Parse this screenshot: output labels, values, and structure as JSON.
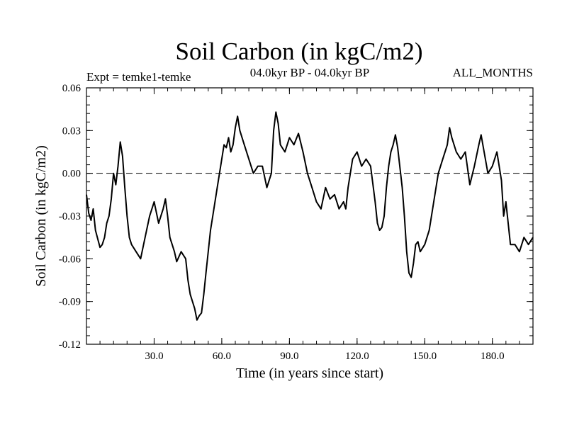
{
  "chart_data": {
    "type": "line",
    "title": "Soil Carbon (in kgC/m2)",
    "subtitle_left": "Expt = temke1-temke",
    "subtitle_center": "04.0kyr BP - 04.0kyr BP",
    "subtitle_right": "ALL_MONTHS",
    "xlabel": "Time (in years since start)",
    "ylabel": "Soil Carbon (in kgC/m2)",
    "xlim": [
      0,
      198
    ],
    "ylim": [
      -0.12,
      0.06
    ],
    "x_ticks": [
      30,
      60,
      90,
      120,
      150,
      180
    ],
    "x_tick_labels": [
      "30.0",
      "60.0",
      "90.0",
      "120.0",
      "150.0",
      "180.0"
    ],
    "y_ticks": [
      -0.12,
      -0.09,
      -0.06,
      -0.03,
      0.0,
      0.03,
      0.06
    ],
    "y_tick_labels": [
      "-0.12",
      "-0.09",
      "-0.06",
      "-0.03",
      "0.00",
      "0.03",
      "0.06"
    ],
    "reference_line": {
      "y": 0.0,
      "style": "dashed"
    },
    "series": [
      {
        "name": "Soil Carbon",
        "x": [
          0,
          1,
          2,
          3,
          4,
          5,
          6,
          7,
          8,
          9,
          10,
          11,
          12,
          13,
          14,
          15,
          16,
          17,
          18,
          19,
          20,
          22,
          24,
          26,
          28,
          30,
          32,
          34,
          35,
          36,
          37,
          38,
          39,
          40,
          42,
          44,
          45,
          46,
          48,
          49,
          50,
          51,
          52,
          53,
          54,
          55,
          56,
          58,
          60,
          61,
          62,
          63,
          64,
          65,
          66,
          67,
          68,
          70,
          72,
          74,
          76,
          78,
          80,
          82,
          83,
          84,
          85,
          86,
          88,
          90,
          92,
          94,
          96,
          98,
          100,
          102,
          104,
          106,
          108,
          110,
          112,
          114,
          115,
          116,
          118,
          120,
          122,
          124,
          126,
          128,
          129,
          130,
          131,
          132,
          133,
          134,
          135,
          136,
          137,
          138,
          140,
          141,
          142,
          143,
          144,
          145,
          146,
          147,
          148,
          150,
          152,
          154,
          156,
          158,
          160,
          161,
          162,
          164,
          166,
          168,
          170,
          172,
          174,
          175,
          176,
          178,
          180,
          182,
          184,
          185,
          186,
          188,
          190,
          192,
          194,
          196,
          198
        ],
        "values": [
          -0.015,
          -0.028,
          -0.033,
          -0.025,
          -0.04,
          -0.046,
          -0.052,
          -0.05,
          -0.045,
          -0.035,
          -0.03,
          -0.018,
          0.0,
          -0.008,
          0.005,
          0.022,
          0.012,
          -0.01,
          -0.03,
          -0.045,
          -0.05,
          -0.055,
          -0.06,
          -0.045,
          -0.03,
          -0.02,
          -0.035,
          -0.025,
          -0.018,
          -0.03,
          -0.045,
          -0.05,
          -0.055,
          -0.062,
          -0.055,
          -0.06,
          -0.075,
          -0.085,
          -0.095,
          -0.103,
          -0.1,
          -0.098,
          -0.085,
          -0.07,
          -0.055,
          -0.04,
          -0.03,
          -0.01,
          0.01,
          0.02,
          0.018,
          0.025,
          0.015,
          0.02,
          0.032,
          0.04,
          0.03,
          0.02,
          0.01,
          0.0,
          0.005,
          0.005,
          -0.01,
          0.0,
          0.03,
          0.043,
          0.035,
          0.02,
          0.015,
          0.025,
          0.02,
          0.028,
          0.015,
          0.0,
          -0.01,
          -0.02,
          -0.025,
          -0.01,
          -0.018,
          -0.015,
          -0.025,
          -0.02,
          -0.025,
          -0.01,
          0.01,
          0.015,
          0.005,
          0.01,
          0.005,
          -0.02,
          -0.035,
          -0.04,
          -0.038,
          -0.03,
          -0.01,
          0.005,
          0.015,
          0.02,
          0.027,
          0.018,
          -0.01,
          -0.03,
          -0.055,
          -0.07,
          -0.073,
          -0.063,
          -0.05,
          -0.048,
          -0.055,
          -0.05,
          -0.04,
          -0.02,
          0.0,
          0.01,
          0.02,
          0.032,
          0.025,
          0.015,
          0.01,
          0.015,
          -0.008,
          0.005,
          0.02,
          0.027,
          0.018,
          0.0,
          0.005,
          0.015,
          -0.005,
          -0.03,
          -0.02,
          -0.05,
          -0.05,
          -0.055,
          -0.045,
          -0.05,
          -0.045
        ]
      }
    ]
  }
}
